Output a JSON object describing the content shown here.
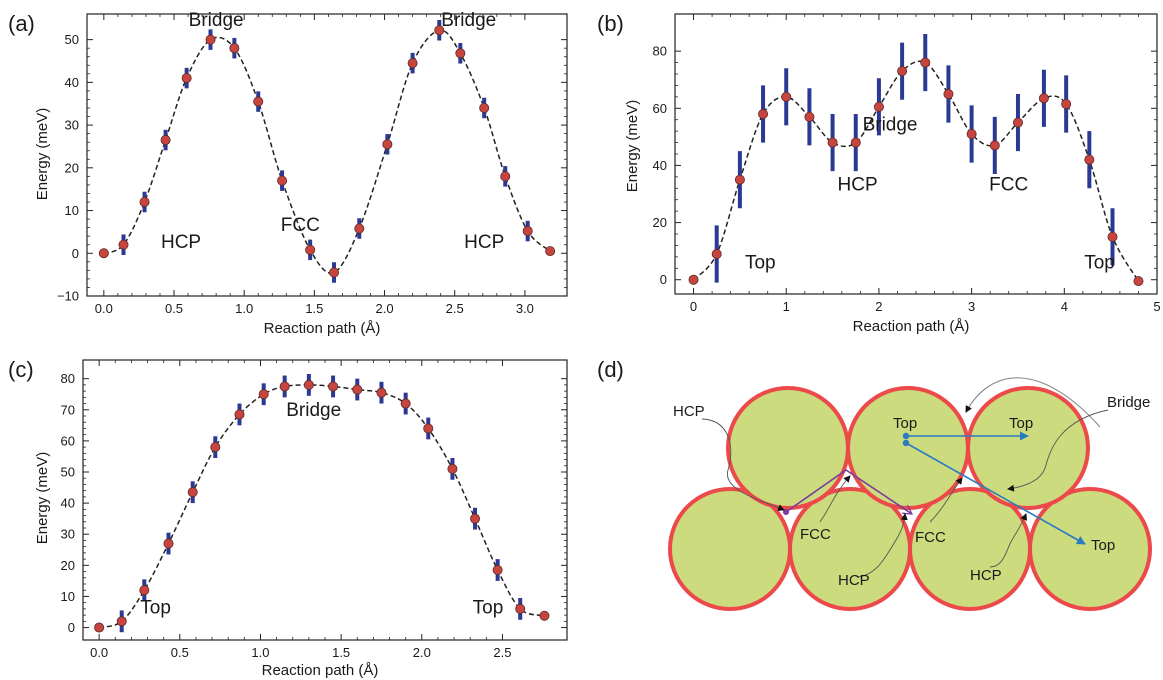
{
  "chart_data": [
    {
      "panel": "(a)",
      "type": "scatter",
      "xlabel": "Reaction path (Å)",
      "ylabel": "Energy (meV)",
      "xlim": [
        -0.12,
        3.3
      ],
      "ylim": [
        -10,
        56
      ],
      "xticks": [
        0.0,
        0.5,
        1.0,
        1.5,
        2.0,
        2.5,
        3.0
      ],
      "xtick_labels": [
        "0.0",
        "0.5",
        "1.0",
        "1.5",
        "2.0",
        "2.5",
        "3.0"
      ],
      "yticks": [
        -10,
        0,
        10,
        20,
        30,
        40,
        50
      ],
      "ytick_labels": [
        "−10",
        "0",
        "10",
        "20",
        "30",
        "40",
        "50"
      ],
      "grid": false,
      "series": [
        {
          "x": [
            0.0,
            0.14,
            0.29,
            0.44,
            0.59,
            0.76,
            0.93,
            1.1,
            1.27,
            1.47,
            1.64,
            1.82,
            2.02,
            2.2,
            2.39,
            2.54,
            2.71,
            2.86,
            3.02,
            3.18
          ],
          "y": [
            0.0,
            2.0,
            12.0,
            26.5,
            41.0,
            50.0,
            48.0,
            35.5,
            17.0,
            0.8,
            -4.5,
            5.8,
            25.5,
            44.5,
            52.2,
            46.8,
            34.0,
            18.0,
            5.2,
            0.5
          ],
          "err": [
            0,
            2.4,
            2.4,
            2.4,
            2.4,
            2.4,
            2.4,
            2.4,
            2.4,
            2.4,
            2.4,
            2.4,
            2.4,
            2.4,
            2.4,
            2.4,
            2.4,
            2.4,
            2.4,
            0
          ]
        }
      ],
      "annotations": [
        {
          "text": "Bridge",
          "x": 0.8,
          "y": 53.2
        },
        {
          "text": "Bridge",
          "x": 2.6,
          "y": 53.2
        },
        {
          "text": "HCP",
          "x": 0.55,
          "y": 1.2
        },
        {
          "text": "FCC",
          "x": 1.4,
          "y": 5.2
        },
        {
          "text": "HCP",
          "x": 2.71,
          "y": 1.2
        }
      ],
      "style": {
        "point_color": "#c8453f",
        "error_color": "#2c3994",
        "line_color": "#222222"
      }
    },
    {
      "panel": "(b)",
      "type": "scatter",
      "xlabel": "Reaction path (Å)",
      "ylabel": "Energy (meV)",
      "xlim": [
        -0.2,
        5.0
      ],
      "ylim": [
        -5,
        93
      ],
      "xticks": [
        0,
        1,
        2,
        3,
        4,
        5
      ],
      "xtick_labels": [
        "0",
        "1",
        "2",
        "3",
        "4",
        "5"
      ],
      "yticks": [
        0,
        20,
        40,
        60,
        80
      ],
      "ytick_labels": [
        "0",
        "20",
        "40",
        "60",
        "80"
      ],
      "grid": false,
      "series": [
        {
          "x": [
            0.0,
            0.25,
            0.5,
            0.75,
            1.0,
            1.25,
            1.5,
            1.75,
            2.0,
            2.25,
            2.5,
            2.75,
            3.0,
            3.25,
            3.5,
            3.78,
            4.02,
            4.27,
            4.52,
            4.8
          ],
          "y": [
            0.0,
            9.0,
            35.0,
            58.0,
            64.0,
            57.0,
            48.0,
            48.0,
            60.5,
            73.0,
            76.0,
            65.0,
            51.0,
            47.0,
            55.0,
            63.5,
            61.5,
            42.0,
            15.0,
            -0.5
          ],
          "err": [
            0,
            10,
            10,
            10,
            10,
            10,
            10,
            10,
            10,
            10,
            10,
            10,
            10,
            10,
            10,
            10,
            10,
            10,
            10,
            0
          ]
        }
      ],
      "annotations": [
        {
          "text": "Top",
          "x": 0.72,
          "y": 4.0
        },
        {
          "text": "HCP",
          "x": 1.77,
          "y": 31.2
        },
        {
          "text": "Bridge",
          "x": 2.12,
          "y": 52.2
        },
        {
          "text": "FCC",
          "x": 3.4,
          "y": 31.2
        },
        {
          "text": "Top",
          "x": 4.38,
          "y": 4.0
        }
      ],
      "style": {
        "point_color": "#c8453f",
        "error_color": "#2c3994",
        "line_color": "#222222"
      }
    },
    {
      "panel": "(c)",
      "type": "scatter",
      "xlabel": "Reaction path (Å)",
      "ylabel": "Energy (meV)",
      "xlim": [
        -0.1,
        2.9
      ],
      "ylim": [
        -4,
        86
      ],
      "xticks": [
        0.0,
        0.5,
        1.0,
        1.5,
        2.0,
        2.5
      ],
      "xtick_labels": [
        "0.0",
        "0.5",
        "1.0",
        "1.5",
        "2.0",
        "2.5"
      ],
      "yticks": [
        0,
        10,
        20,
        30,
        40,
        50,
        60,
        70,
        80
      ],
      "ytick_labels": [
        "0",
        "10",
        "20",
        "30",
        "40",
        "50",
        "60",
        "70",
        "80"
      ],
      "grid": false,
      "series": [
        {
          "x": [
            0.0,
            0.14,
            0.28,
            0.43,
            0.58,
            0.72,
            0.87,
            1.02,
            1.15,
            1.3,
            1.45,
            1.6,
            1.75,
            1.9,
            2.04,
            2.19,
            2.33,
            2.47,
            2.61,
            2.76
          ],
          "y": [
            0.0,
            2.0,
            12.0,
            27.0,
            43.5,
            58.0,
            68.5,
            75.0,
            77.5,
            78.0,
            77.5,
            76.5,
            75.5,
            72.0,
            64.0,
            51.0,
            35.0,
            18.5,
            6.0,
            3.8
          ],
          "err": [
            0,
            3.5,
            3.5,
            3.5,
            3.5,
            3.5,
            3.5,
            3.5,
            3.5,
            3.5,
            3.5,
            3.5,
            3.5,
            3.5,
            3.5,
            3.5,
            3.5,
            3.5,
            3.5,
            0
          ]
        }
      ],
      "annotations": [
        {
          "text": "Bridge",
          "x": 1.33,
          "y": 68.0
        },
        {
          "text": "Top",
          "x": 0.35,
          "y": 4.5
        },
        {
          "text": "Top",
          "x": 2.41,
          "y": 4.5
        }
      ],
      "style": {
        "point_color": "#c8453f",
        "error_color": "#2c3994",
        "line_color": "#222222"
      }
    }
  ],
  "diagram": {
    "panel": "(d)",
    "atom_fill": "#ccdb7d",
    "atom_stroke": "#ec4a4a",
    "arrow_blue": "#2a7bc2",
    "arrow_purple": "#7a3a9e",
    "labels": {
      "hcp_outer": "HCP",
      "bridge_outer": "Bridge",
      "top_center": "Top",
      "top_right": "Top",
      "top_bottom": "Top",
      "fcc_left": "FCC",
      "fcc_mid": "FCC",
      "hcp_left": "HCP",
      "hcp_right": "HCP"
    }
  }
}
